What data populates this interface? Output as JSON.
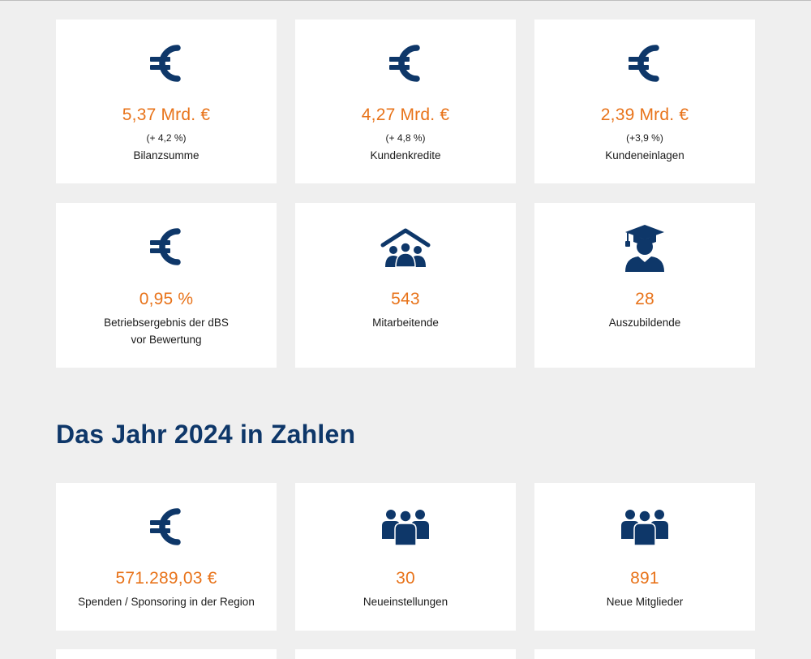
{
  "kpis": [
    {
      "value": "5,37 Mrd. €",
      "change": "(+ 4,2 %)",
      "label": "Bilanzsumme",
      "icon": "euro-icon"
    },
    {
      "value": "4,27 Mrd. €",
      "change": "(+ 4,8 %)",
      "label": "Kundenkredite",
      "icon": "euro-icon"
    },
    {
      "value": "2,39 Mrd. €",
      "change": "(+3,9 %)",
      "label": "Kundeneinlagen",
      "icon": "euro-icon"
    },
    {
      "value": "0,95 %",
      "label": "Betriebsergebnis der dBS\nvor Bewertung",
      "icon": "euro-icon"
    },
    {
      "value": "543",
      "label": "Mitarbeitende",
      "icon": "people-under-roof-icon"
    },
    {
      "value": "28",
      "label": "Auszubildende",
      "icon": "graduate-icon"
    }
  ],
  "year_section": {
    "title": "Das Jahr 2024 in Zahlen",
    "items": [
      {
        "value": "571.289,03 €",
        "label": "Spenden / Sponsoring in der Region",
        "icon": "euro-icon"
      },
      {
        "value": "30",
        "label": "Neueinstellungen",
        "icon": "group-icon"
      },
      {
        "value": "891",
        "label": "Neue Mitglieder",
        "icon": "group-icon"
      }
    ]
  },
  "colors": {
    "accent": "#e8731a",
    "navy": "#0e3769",
    "background": "#efefef",
    "card": "#ffffff"
  }
}
